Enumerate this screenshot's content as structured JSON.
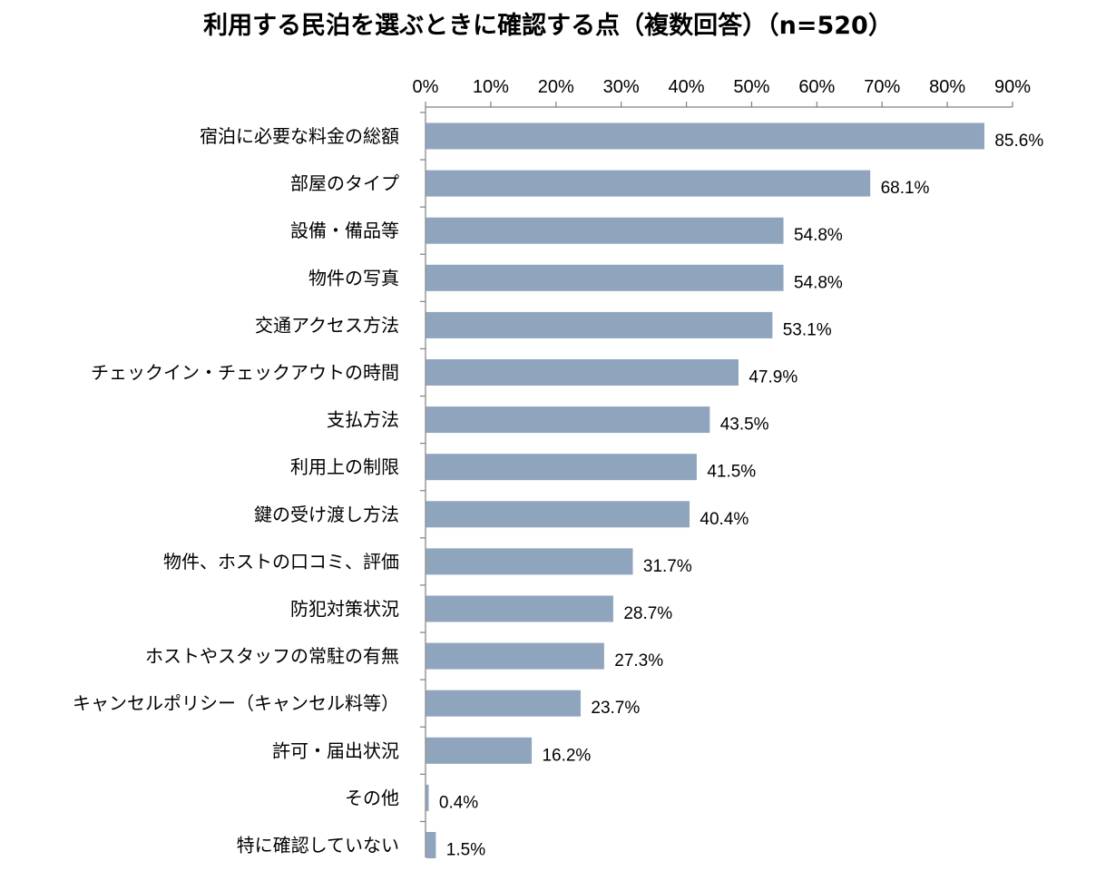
{
  "chart_data": {
    "type": "bar",
    "orientation": "horizontal",
    "title": "利用する民泊を選ぶときに確認する点（複数回答）（n=520）",
    "xlim": [
      0,
      90
    ],
    "x_ticks": [
      "0%",
      "10%",
      "20%",
      "30%",
      "40%",
      "50%",
      "60%",
      "70%",
      "80%",
      "90%"
    ],
    "categories": [
      "宿泊に必要な料金の総額",
      "部屋のタイプ",
      "設備・備品等",
      "物件の写真",
      "交通アクセス方法",
      "チェックイン・チェックアウトの時間",
      "支払方法",
      "利用上の制限",
      "鍵の受け渡し方法",
      "物件、ホストの口コミ、評価",
      "防犯対策状況",
      "ホストやスタッフの常駐の有無",
      "キャンセルポリシー（キャンセル料等）",
      "許可・届出状況",
      "その他",
      "特に確認していない"
    ],
    "values": [
      85.6,
      68.1,
      54.8,
      54.8,
      53.1,
      47.9,
      43.5,
      41.5,
      40.4,
      31.7,
      28.7,
      27.3,
      23.7,
      16.2,
      0.4,
      1.5
    ],
    "value_labels": [
      "85.6%",
      "68.1%",
      "54.8%",
      "54.8%",
      "53.1%",
      "47.9%",
      "43.5%",
      "41.5%",
      "40.4%",
      "31.7%",
      "28.7%",
      "27.3%",
      "23.7%",
      "16.2%",
      "0.4%",
      "1.5%"
    ],
    "grid": false,
    "legend": "none",
    "bar_color": "#8fa4bd",
    "axis_color": "#808080"
  }
}
